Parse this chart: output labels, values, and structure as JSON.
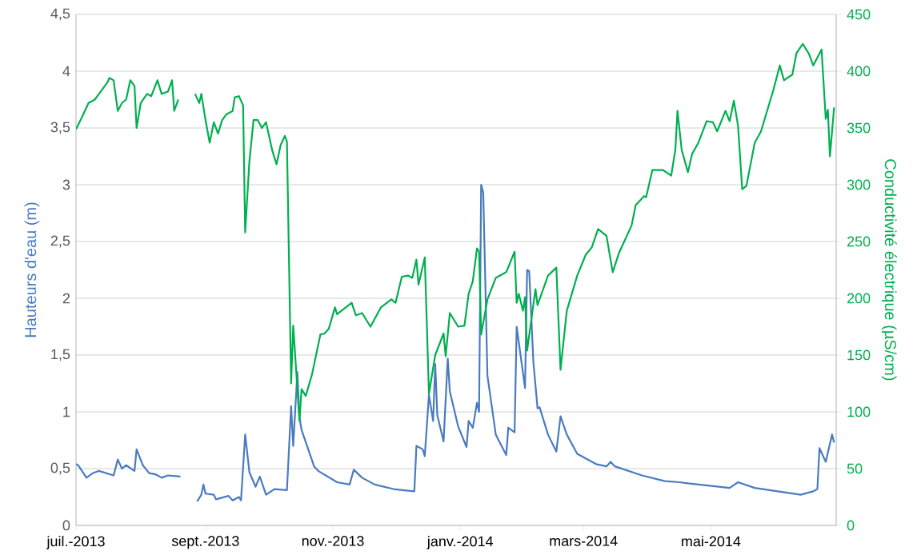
{
  "chart_data": {
    "type": "line",
    "ylabel": "Hauteurs d'eau (m)",
    "y2label": "Conductivité électrique (µS/cm)",
    "xlim": [
      "2013-07-01",
      "2014-06-30"
    ],
    "xticks": [
      {
        "value": "2013-07-01",
        "label": "juil.-2013"
      },
      {
        "value": "2013-09-01",
        "label": "sept.-2013"
      },
      {
        "value": "2013-11-01",
        "label": "nov.-2013"
      },
      {
        "value": "2014-01-01",
        "label": "janv.-2014"
      },
      {
        "value": "2014-03-01",
        "label": "mars-2014"
      },
      {
        "value": "2014-05-01",
        "label": "mai-2014"
      }
    ],
    "ylim": [
      0,
      4.5
    ],
    "yticks": [
      0,
      {
        "value": 0.5,
        "label": "0,5"
      },
      1,
      {
        "value": 1.5,
        "label": "1,5"
      },
      2,
      {
        "value": 2.5,
        "label": "2,5"
      },
      3,
      {
        "value": 3.5,
        "label": "3,5"
      },
      4,
      {
        "value": 4.5,
        "label": "4,5"
      }
    ],
    "y2lim": [
      0,
      450
    ],
    "y2ticks": [
      0,
      50,
      100,
      150,
      200,
      250,
      300,
      350,
      400,
      450
    ],
    "grid": "y",
    "series": [
      {
        "color": "#4a7bc0",
        "axis": "y",
        "x": [
          "2013-07-01",
          "2013-07-02",
          "2013-07-06",
          "2013-07-09",
          "2013-07-12",
          "2013-07-19",
          "2013-07-21",
          "2013-07-23",
          "2013-07-25",
          "2013-07-29",
          "2013-07-30",
          "2013-08-02",
          "2013-08-05",
          "2013-08-08",
          "2013-08-11",
          "2013-08-14",
          "2013-08-20",
          "2013-08-24",
          "2013-08-28",
          "2013-08-30",
          "2013-08-31",
          "2013-09-01",
          "2013-09-05",
          "2013-09-06",
          "2013-09-12",
          "2013-09-14",
          "2013-09-17",
          "2013-09-18",
          "2013-09-20",
          "2013-09-22",
          "2013-09-25",
          "2013-09-27",
          "2013-09-30",
          "2013-10-04",
          "2013-10-10",
          "2013-10-12",
          "2013-10-13",
          "2013-10-15",
          "2013-10-16",
          "2013-10-17",
          "2013-10-23",
          "2013-10-25",
          "2013-11-03",
          "2013-11-09",
          "2013-11-11",
          "2013-11-15",
          "2013-11-21",
          "2013-11-30",
          "2013-12-10",
          "2013-12-11",
          "2013-12-14",
          "2013-12-15",
          "2013-12-17",
          "2013-12-19",
          "2013-12-20",
          "2013-12-21",
          "2013-12-24",
          "2013-12-26",
          "2013-12-27",
          "2013-12-31",
          "2014-01-04",
          "2014-01-05",
          "2014-01-07",
          "2014-01-09",
          "2014-01-10",
          "2014-01-11",
          "2014-01-12",
          "2014-01-14",
          "2014-01-18",
          "2014-01-23",
          "2014-01-24",
          "2014-01-27",
          "2014-01-28",
          "2014-02-01",
          "2014-02-02",
          "2014-02-03",
          "2014-02-05",
          "2014-02-07",
          "2014-02-08",
          "2014-02-12",
          "2014-02-16",
          "2014-02-18",
          "2014-02-21",
          "2014-02-26",
          "2014-03-07",
          "2014-03-12",
          "2014-03-14",
          "2014-03-16",
          "2014-03-29",
          "2014-04-09",
          "2014-04-16",
          "2014-04-20",
          "2014-04-30",
          "2014-05-10",
          "2014-05-14",
          "2014-05-22",
          "2014-06-02",
          "2014-06-13",
          "2014-06-19",
          "2014-06-21",
          "2014-06-22",
          "2014-06-25",
          "2014-06-28",
          "2014-06-29"
        ],
        "values": [
          0.54,
          0.53,
          0.42,
          0.46,
          0.48,
          0.44,
          0.58,
          0.5,
          0.53,
          0.48,
          0.67,
          0.53,
          0.46,
          0.45,
          0.42,
          0.44,
          0.43,
          null,
          0.21,
          0.27,
          0.36,
          0.28,
          0.27,
          0.23,
          0.26,
          0.22,
          0.25,
          0.22,
          0.8,
          0.47,
          0.34,
          0.43,
          0.27,
          0.32,
          0.31,
          1.05,
          0.7,
          1.35,
          0.95,
          0.84,
          0.52,
          0.48,
          0.38,
          0.36,
          0.49,
          0.42,
          0.36,
          0.32,
          0.3,
          0.7,
          0.67,
          0.61,
          1.15,
          0.92,
          1.42,
          0.97,
          0.74,
          1.47,
          1.18,
          0.87,
          0.69,
          0.92,
          0.86,
          1.08,
          1.0,
          3.0,
          2.93,
          1.32,
          0.8,
          0.62,
          0.86,
          0.82,
          1.75,
          1.21,
          2.25,
          2.24,
          1.44,
          1.03,
          1.04,
          0.8,
          0.65,
          0.96,
          0.8,
          0.63,
          0.54,
          0.52,
          0.56,
          0.52,
          0.44,
          0.39,
          0.38,
          0.37,
          0.35,
          0.33,
          0.38,
          0.33,
          0.3,
          0.27,
          0.3,
          0.32,
          0.68,
          0.56,
          0.8,
          0.73
        ]
      },
      {
        "color": "#00b050",
        "axis": "y2",
        "x": [
          "2013-07-01",
          "2013-07-04",
          "2013-07-07",
          "2013-07-10",
          "2013-07-12",
          "2013-07-16",
          "2013-07-17",
          "2013-07-19",
          "2013-07-21",
          "2013-07-23",
          "2013-07-25",
          "2013-07-27",
          "2013-07-29",
          "2013-07-30",
          "2013-08-01",
          "2013-08-04",
          "2013-08-06",
          "2013-08-09",
          "2013-08-11",
          "2013-08-14",
          "2013-08-16",
          "2013-08-17",
          "2013-08-19",
          "2013-08-24",
          "2013-08-27",
          "2013-08-29",
          "2013-08-30",
          "2013-09-01",
          "2013-09-03",
          "2013-09-05",
          "2013-09-07",
          "2013-09-09",
          "2013-09-11",
          "2013-09-14",
          "2013-09-15",
          "2013-09-17",
          "2013-09-19",
          "2013-09-20",
          "2013-09-22",
          "2013-09-24",
          "2013-09-26",
          "2013-09-28",
          "2013-09-30",
          "2013-10-03",
          "2013-10-05",
          "2013-10-07",
          "2013-10-09",
          "2013-10-10",
          "2013-10-12",
          "2013-10-13",
          "2013-10-16",
          "2013-10-17",
          "2013-10-19",
          "2013-10-22",
          "2013-10-26",
          "2013-10-28",
          "2013-10-30",
          "2013-11-02",
          "2013-11-03",
          "2013-11-10",
          "2013-11-12",
          "2013-11-15",
          "2013-11-19",
          "2013-11-24",
          "2013-11-29",
          "2013-12-01",
          "2013-12-04",
          "2013-12-07",
          "2013-12-09",
          "2013-12-11",
          "2013-12-12",
          "2013-12-15",
          "2013-12-17",
          "2013-12-20",
          "2013-12-24",
          "2013-12-25",
          "2013-12-27",
          "2013-12-31",
          "2014-01-03",
          "2014-01-05",
          "2014-01-07",
          "2014-01-09",
          "2014-01-10",
          "2014-01-11",
          "2014-01-14",
          "2014-01-18",
          "2014-01-23",
          "2014-01-27",
          "2014-01-28",
          "2014-01-29",
          "2014-01-31",
          "2014-02-01",
          "2014-02-02",
          "2014-02-06",
          "2014-02-07",
          "2014-02-12",
          "2014-02-16",
          "2014-02-18",
          "2014-02-21",
          "2014-02-26",
          "2014-03-02",
          "2014-03-05",
          "2014-03-08",
          "2014-03-12",
          "2014-03-15",
          "2014-03-18",
          "2014-03-24",
          "2014-03-26",
          "2014-03-30",
          "2014-03-31",
          "2014-04-03",
          "2014-04-08",
          "2014-04-12",
          "2014-04-14",
          "2014-04-15",
          "2014-04-17",
          "2014-04-20",
          "2014-04-22",
          "2014-04-25",
          "2014-04-29",
          "2014-05-02",
          "2014-05-04",
          "2014-05-08",
          "2014-05-10",
          "2014-05-12",
          "2014-05-14",
          "2014-05-16",
          "2014-05-18",
          "2014-05-22",
          "2014-05-25",
          "2014-05-31",
          "2014-06-03",
          "2014-06-05",
          "2014-06-09",
          "2014-06-11",
          "2014-06-14",
          "2014-06-17",
          "2014-06-19",
          "2014-06-23",
          "2014-06-25",
          "2014-06-26",
          "2014-06-27",
          "2014-06-29"
        ],
        "values": [
          349,
          360,
          372,
          375,
          380,
          390,
          394,
          392,
          365,
          372,
          375,
          392,
          387,
          350,
          372,
          380,
          378,
          392,
          380,
          382,
          392,
          365,
          375,
          null,
          380,
          372,
          380,
          357,
          337,
          355,
          345,
          357,
          362,
          365,
          377,
          378,
          370,
          258,
          320,
          357,
          357,
          350,
          355,
          330,
          318,
          335,
          343,
          338,
          125,
          176,
          92,
          120,
          114,
          133,
          168,
          169,
          173,
          192,
          186,
          196,
          185,
          187,
          175,
          192,
          199,
          196,
          219,
          220,
          218,
          234,
          212,
          236,
          116,
          150,
          169,
          149,
          187,
          175,
          176,
          204,
          215,
          244,
          241,
          168,
          199,
          218,
          223,
          241,
          196,
          204,
          189,
          201,
          154,
          208,
          194,
          220,
          227,
          137,
          189,
          220,
          238,
          245,
          261,
          255,
          223,
          240,
          264,
          282,
          290,
          289,
          313,
          313,
          308,
          331,
          365,
          331,
          311,
          327,
          337,
          356,
          355,
          347,
          365,
          356,
          374,
          352,
          296,
          299,
          337,
          347,
          384,
          405,
          392,
          397,
          416,
          424,
          415,
          405,
          419,
          358,
          366,
          325,
          368
        ]
      }
    ]
  }
}
